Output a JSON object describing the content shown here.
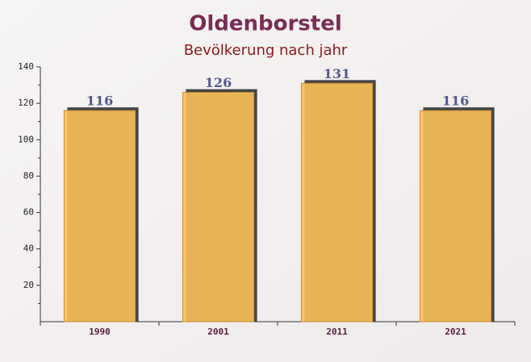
{
  "chart_data": {
    "type": "bar",
    "title": "Oldenborstel",
    "subtitle": "Bevölkerung nach jahr",
    "categories": [
      "1990",
      "2001",
      "2011",
      "2021"
    ],
    "values": [
      116,
      126,
      131,
      116
    ],
    "color": "#fbbf5a",
    "ylim": [
      0,
      140
    ],
    "yticks": [
      20,
      40,
      60,
      80,
      100,
      120,
      140
    ]
  }
}
